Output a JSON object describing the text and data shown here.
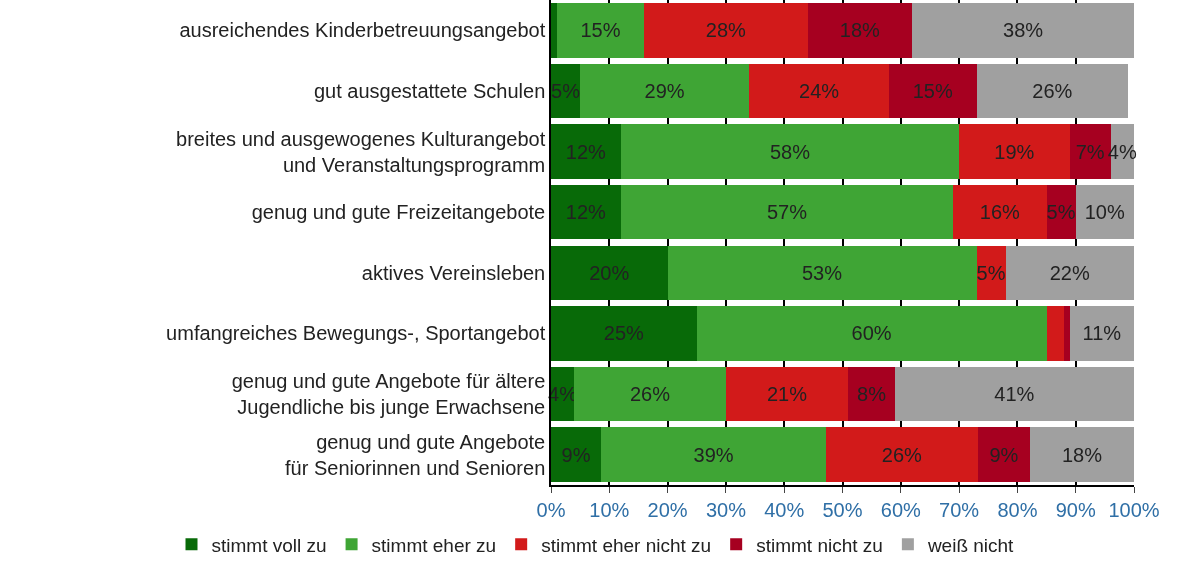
{
  "chart_data": {
    "type": "bar",
    "orientation": "horizontal",
    "stacked": true,
    "categories": [
      "ausreichendes Kinderbetreuungsangebot",
      "gut ausgestattete Schulen",
      "breites und ausgewogenes Kulturangebot\nund Veranstaltungsprogramm",
      "genug und gute Freizeitangebote",
      "aktives Vereinsleben",
      "umfangreiches Bewegungs-, Sportangebot",
      "genug und gute Angebote für ältere\nJugendliche bis junge Erwachsene",
      "genug und gute Angebote\nfür Seniorinnen und Senioren"
    ],
    "series": [
      {
        "name": "stimmt voll zu",
        "color": "#086a08",
        "values": [
          1,
          5,
          12,
          12,
          20,
          25,
          4,
          8.6
        ],
        "value_labels": [
          null,
          "5%",
          "12%",
          "12%",
          "20%",
          "25%",
          "4%",
          "9%"
        ]
      },
      {
        "name": "stimmt eher zu",
        "color": "#3fa535",
        "values": [
          15,
          29,
          58,
          57,
          53,
          60,
          26,
          38.6
        ],
        "value_labels": [
          "15%",
          "29%",
          "58%",
          "57%",
          "53%",
          "60%",
          "26%",
          "39%"
        ]
      },
      {
        "name": "stimmt eher nicht zu",
        "color": "#d21a1a",
        "values": [
          28,
          24,
          19,
          16,
          5,
          3,
          21,
          26
        ],
        "value_labels": [
          "28%",
          "24%",
          "19%",
          "16%",
          "5%",
          null,
          "21%",
          "26%"
        ]
      },
      {
        "name": "stimmt nicht zu",
        "color": "#a60020",
        "values": [
          18,
          15,
          7,
          5,
          0,
          1,
          8,
          9
        ],
        "value_labels": [
          "18%",
          "15%",
          "7%",
          "5%",
          null,
          null,
          "8%",
          "9%"
        ]
      },
      {
        "name": "weiß nicht",
        "color": "#a0a0a0",
        "values": [
          38,
          26,
          4,
          10,
          22,
          11,
          41,
          17.8
        ],
        "value_labels": [
          "38%",
          "26%",
          "4%",
          "10%",
          "22%",
          "11%",
          "41%",
          "18%"
        ]
      }
    ],
    "xlim": [
      0,
      100
    ],
    "xticks": [
      {
        "value": 0,
        "label": "0%"
      },
      {
        "value": 10,
        "label": "10%"
      },
      {
        "value": 20,
        "label": "20%"
      },
      {
        "value": 30,
        "label": "30%"
      },
      {
        "value": 40,
        "label": "40%"
      },
      {
        "value": 50,
        "label": "50%"
      },
      {
        "value": 60,
        "label": "60%"
      },
      {
        "value": 70,
        "label": "70%"
      },
      {
        "value": 80,
        "label": "80%"
      },
      {
        "value": 90,
        "label": "90%"
      },
      {
        "value": 100,
        "label": "100%"
      }
    ],
    "grid": "x",
    "legend": "bottom"
  }
}
